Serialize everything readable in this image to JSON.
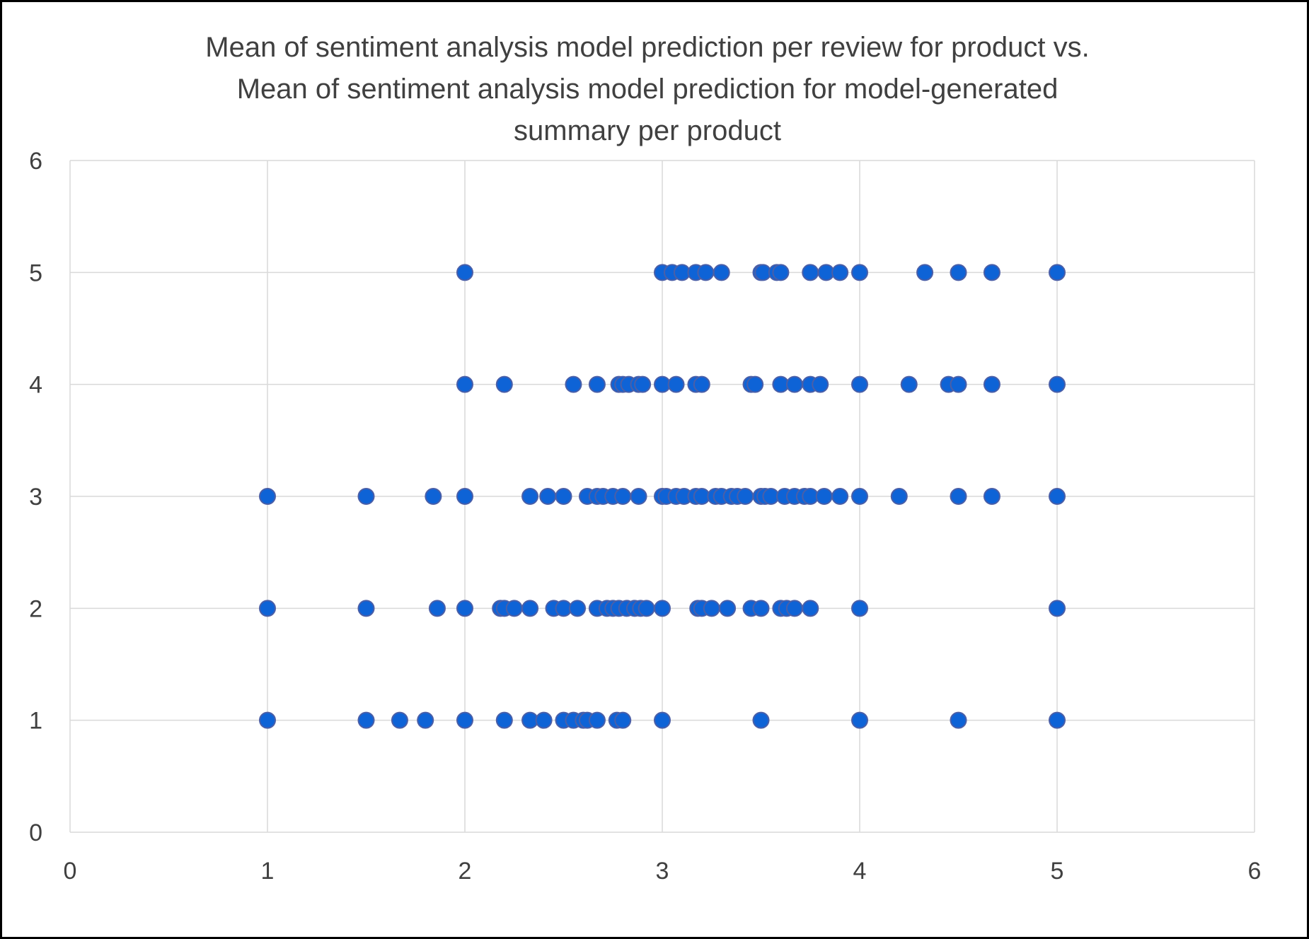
{
  "chart_data": {
    "type": "scatter",
    "title_lines": [
      "Mean of sentiment analysis model prediction per review for product vs.",
      "Mean of sentiment analysis model prediction for model-generated",
      "summary per product"
    ],
    "xlabel": "",
    "ylabel": "",
    "xlim": [
      0,
      6
    ],
    "ylim": [
      0,
      6
    ],
    "x_ticks": [
      "0",
      "1",
      "2",
      "3",
      "4",
      "5",
      "6"
    ],
    "y_ticks": [
      "0",
      "1",
      "2",
      "3",
      "4",
      "5",
      "6"
    ],
    "grid": true,
    "legend": "none",
    "marker_color": "#0e63d6",
    "marker_edge_color": "#4a5fa8",
    "grid_color": "#d9d9d9",
    "points": [
      [
        2,
        5
      ],
      [
        3,
        5
      ],
      [
        3.05,
        5
      ],
      [
        3.1,
        5
      ],
      [
        3.17,
        5
      ],
      [
        3.22,
        5
      ],
      [
        3.3,
        5
      ],
      [
        3.5,
        5
      ],
      [
        3.51,
        5
      ],
      [
        3.58,
        5
      ],
      [
        3.6,
        5
      ],
      [
        3.75,
        5
      ],
      [
        3.83,
        5
      ],
      [
        3.9,
        5
      ],
      [
        4,
        5
      ],
      [
        4.33,
        5
      ],
      [
        4.5,
        5
      ],
      [
        4.67,
        5
      ],
      [
        5,
        5
      ],
      [
        2,
        4
      ],
      [
        2.2,
        4
      ],
      [
        2.55,
        4
      ],
      [
        2.67,
        4
      ],
      [
        2.78,
        4
      ],
      [
        2.8,
        4
      ],
      [
        2.83,
        4
      ],
      [
        2.88,
        4
      ],
      [
        2.9,
        4
      ],
      [
        3,
        4
      ],
      [
        3.07,
        4
      ],
      [
        3.17,
        4
      ],
      [
        3.2,
        4
      ],
      [
        3.45,
        4
      ],
      [
        3.47,
        4
      ],
      [
        3.6,
        4
      ],
      [
        3.67,
        4
      ],
      [
        3.75,
        4
      ],
      [
        3.8,
        4
      ],
      [
        4,
        4
      ],
      [
        4.25,
        4
      ],
      [
        4.45,
        4
      ],
      [
        4.5,
        4
      ],
      [
        4.67,
        4
      ],
      [
        5,
        4
      ],
      [
        1,
        3
      ],
      [
        1.5,
        3
      ],
      [
        1.84,
        3
      ],
      [
        2,
        3
      ],
      [
        2.33,
        3
      ],
      [
        2.42,
        3
      ],
      [
        2.5,
        3
      ],
      [
        2.62,
        3
      ],
      [
        2.67,
        3
      ],
      [
        2.7,
        3
      ],
      [
        2.75,
        3
      ],
      [
        2.8,
        3
      ],
      [
        2.88,
        3
      ],
      [
        3,
        3
      ],
      [
        3.02,
        3
      ],
      [
        3.07,
        3
      ],
      [
        3.11,
        3
      ],
      [
        3.17,
        3
      ],
      [
        3.2,
        3
      ],
      [
        3.27,
        3
      ],
      [
        3.3,
        3
      ],
      [
        3.35,
        3
      ],
      [
        3.38,
        3
      ],
      [
        3.42,
        3
      ],
      [
        3.5,
        3
      ],
      [
        3.52,
        3
      ],
      [
        3.55,
        3
      ],
      [
        3.62,
        3
      ],
      [
        3.67,
        3
      ],
      [
        3.72,
        3
      ],
      [
        3.75,
        3
      ],
      [
        3.82,
        3
      ],
      [
        3.9,
        3
      ],
      [
        4,
        3
      ],
      [
        4.2,
        3
      ],
      [
        4.5,
        3
      ],
      [
        4.67,
        3
      ],
      [
        5,
        3
      ],
      [
        1,
        2
      ],
      [
        1.5,
        2
      ],
      [
        1.86,
        2
      ],
      [
        2,
        2
      ],
      [
        2.18,
        2
      ],
      [
        2.2,
        2
      ],
      [
        2.25,
        2
      ],
      [
        2.33,
        2
      ],
      [
        2.45,
        2
      ],
      [
        2.5,
        2
      ],
      [
        2.57,
        2
      ],
      [
        2.67,
        2
      ],
      [
        2.72,
        2
      ],
      [
        2.75,
        2
      ],
      [
        2.78,
        2
      ],
      [
        2.82,
        2
      ],
      [
        2.86,
        2
      ],
      [
        2.89,
        2
      ],
      [
        2.92,
        2
      ],
      [
        3,
        2
      ],
      [
        3.18,
        2
      ],
      [
        3.2,
        2
      ],
      [
        3.25,
        2
      ],
      [
        3.33,
        2
      ],
      [
        3.45,
        2
      ],
      [
        3.5,
        2
      ],
      [
        3.6,
        2
      ],
      [
        3.63,
        2
      ],
      [
        3.67,
        2
      ],
      [
        3.75,
        2
      ],
      [
        4,
        2
      ],
      [
        5,
        2
      ],
      [
        1,
        1
      ],
      [
        1.5,
        1
      ],
      [
        1.67,
        1
      ],
      [
        1.8,
        1
      ],
      [
        2,
        1
      ],
      [
        2.2,
        1
      ],
      [
        2.33,
        1
      ],
      [
        2.4,
        1
      ],
      [
        2.5,
        1
      ],
      [
        2.55,
        1
      ],
      [
        2.6,
        1
      ],
      [
        2.62,
        1
      ],
      [
        2.67,
        1
      ],
      [
        2.77,
        1
      ],
      [
        2.8,
        1
      ],
      [
        3,
        1
      ],
      [
        3.5,
        1
      ],
      [
        4,
        1
      ],
      [
        4.5,
        1
      ],
      [
        5,
        1
      ]
    ]
  }
}
